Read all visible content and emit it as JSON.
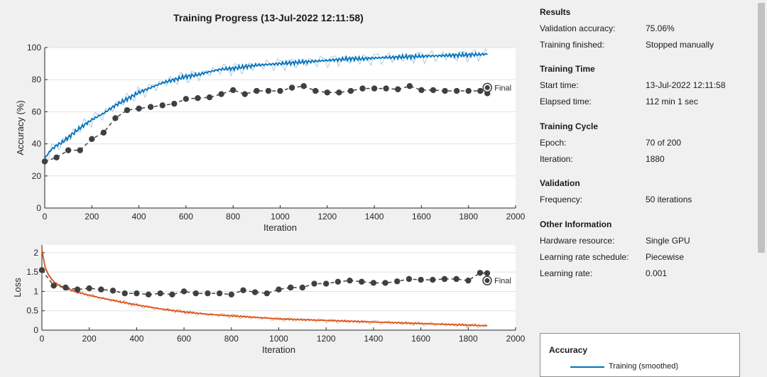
{
  "colors": {
    "training": "#0072bd",
    "training_light": "#aacbe4",
    "loss_training": "#d95319",
    "loss_light": "#f0b49a",
    "validation": "#404040",
    "grid": "#e2e2e2",
    "axis": "#262626"
  },
  "final_label": "Final",
  "chart_data": [
    {
      "type": "line",
      "title": "Training Progress (13-Jul-2022 12:11:58)",
      "xlabel": "Iteration",
      "ylabel": "Accuracy (%)",
      "xlim": [
        0,
        2000
      ],
      "ylim": [
        0,
        100
      ],
      "xticks": [
        0,
        200,
        400,
        600,
        800,
        1000,
        1200,
        1400,
        1600,
        1800,
        2000
      ],
      "yticks": [
        0,
        20,
        40,
        60,
        80,
        100
      ],
      "grid": true,
      "series": [
        {
          "x": [
            0,
            25,
            50,
            75,
            100,
            150,
            200,
            250,
            300,
            350,
            400,
            450,
            500,
            550,
            600,
            650,
            700,
            750,
            800,
            850,
            900,
            950,
            1000,
            1050,
            1100,
            1150,
            1200,
            1250,
            1300,
            1350,
            1400,
            1450,
            1500,
            1550,
            1600,
            1650,
            1700,
            1750,
            1800,
            1850,
            1880
          ],
          "y": [
            31,
            36,
            39,
            41,
            44,
            50,
            55,
            59,
            64,
            68,
            72,
            75,
            78,
            80,
            82,
            83,
            85,
            86.5,
            87,
            88,
            89,
            89.5,
            90,
            90.5,
            91,
            91.5,
            92,
            92.5,
            93,
            93,
            93.5,
            93.8,
            94,
            94.3,
            94.6,
            94.8,
            95,
            95.2,
            95.5,
            95.7,
            96
          ]
        },
        {
          "x": [
            0,
            50,
            100,
            150,
            200,
            250,
            300,
            350,
            400,
            450,
            500,
            550,
            600,
            650,
            700,
            750,
            800,
            850,
            900,
            950,
            1000,
            1050,
            1100,
            1150,
            1200,
            1250,
            1300,
            1350,
            1400,
            1450,
            1500,
            1550,
            1600,
            1650,
            1700,
            1750,
            1800,
            1850,
            1880
          ],
          "y": [
            29,
            31.5,
            36,
            36,
            43,
            47,
            56,
            61,
            62,
            63,
            64,
            65,
            68,
            68.5,
            69,
            71,
            73.5,
            71,
            73,
            73,
            73,
            75,
            76,
            73,
            72,
            72,
            73,
            74.5,
            74.5,
            74.5,
            74,
            76,
            73.5,
            73.5,
            73,
            73,
            73,
            73,
            71.5
          ]
        }
      ],
      "final": [
        1880,
        75.06
      ]
    },
    {
      "type": "line",
      "xlabel": "Iteration",
      "ylabel": "Loss",
      "xlim": [
        0,
        2000
      ],
      "ylim": [
        0,
        2.2
      ],
      "xticks": [
        0,
        200,
        400,
        600,
        800,
        1000,
        1200,
        1400,
        1600,
        1800,
        2000
      ],
      "yticks": [
        0,
        0.5,
        1,
        1.5,
        2
      ],
      "ytick_labels": [
        "0",
        "0.5",
        "1",
        "1.5",
        "2"
      ],
      "grid": true,
      "series": [
        {
          "x": [
            0,
            5,
            15,
            30,
            50,
            75,
            100,
            150,
            200,
            250,
            300,
            350,
            400,
            450,
            500,
            550,
            600,
            650,
            700,
            750,
            800,
            850,
            900,
            950,
            1000,
            1050,
            1100,
            1150,
            1200,
            1250,
            1300,
            1350,
            1400,
            1450,
            1500,
            1550,
            1600,
            1650,
            1700,
            1750,
            1800,
            1850,
            1880
          ],
          "y": [
            2.1,
            1.9,
            1.6,
            1.4,
            1.25,
            1.15,
            1.08,
            0.98,
            0.9,
            0.83,
            0.77,
            0.71,
            0.65,
            0.6,
            0.55,
            0.51,
            0.47,
            0.44,
            0.41,
            0.39,
            0.37,
            0.35,
            0.33,
            0.31,
            0.29,
            0.28,
            0.27,
            0.26,
            0.25,
            0.24,
            0.23,
            0.22,
            0.21,
            0.2,
            0.19,
            0.18,
            0.17,
            0.16,
            0.15,
            0.14,
            0.13,
            0.12,
            0.11
          ]
        },
        {
          "x": [
            0,
            50,
            100,
            150,
            200,
            250,
            300,
            350,
            400,
            450,
            500,
            550,
            600,
            650,
            700,
            750,
            800,
            850,
            900,
            950,
            1000,
            1050,
            1100,
            1150,
            1200,
            1250,
            1300,
            1350,
            1400,
            1450,
            1500,
            1550,
            1600,
            1650,
            1700,
            1750,
            1800,
            1850,
            1880
          ],
          "y": [
            1.55,
            1.15,
            1.1,
            1.05,
            1.08,
            1.05,
            1.02,
            0.95,
            0.95,
            0.92,
            0.95,
            0.92,
            1.0,
            0.95,
            0.95,
            0.95,
            0.92,
            1.03,
            0.98,
            0.95,
            1.05,
            1.1,
            1.1,
            1.2,
            1.2,
            1.25,
            1.28,
            1.25,
            1.22,
            1.22,
            1.26,
            1.32,
            1.3,
            1.3,
            1.32,
            1.32,
            1.28,
            1.48,
            1.47
          ]
        }
      ],
      "final": [
        1880,
        1.28
      ]
    }
  ],
  "results": {
    "title": "Results",
    "rows": [
      {
        "label": "Validation accuracy:",
        "value": "75.06%"
      },
      {
        "label": "Training finished:",
        "value": "Stopped manually"
      }
    ]
  },
  "time": {
    "title": "Training Time",
    "rows": [
      {
        "label": "Start time:",
        "value": "13-Jul-2022 12:11:58"
      },
      {
        "label": "Elapsed time:",
        "value": "112 min 1 sec"
      }
    ]
  },
  "cycle": {
    "title": "Training Cycle",
    "rows": [
      {
        "label": "Epoch:",
        "value": "70 of 200"
      },
      {
        "label": "Iteration:",
        "value": "1880"
      }
    ]
  },
  "validation": {
    "title": "Validation",
    "rows": [
      {
        "label": "Frequency:",
        "value": "50 iterations"
      }
    ]
  },
  "other": {
    "title": "Other Information",
    "rows": [
      {
        "label": "Hardware resource:",
        "value": "Single GPU"
      },
      {
        "label": "Learning rate schedule:",
        "value": "Piecewise"
      },
      {
        "label": "Learning rate:",
        "value": "0.001"
      }
    ]
  },
  "legend": {
    "title": "Accuracy",
    "items": [
      "Training (smoothed)"
    ]
  }
}
